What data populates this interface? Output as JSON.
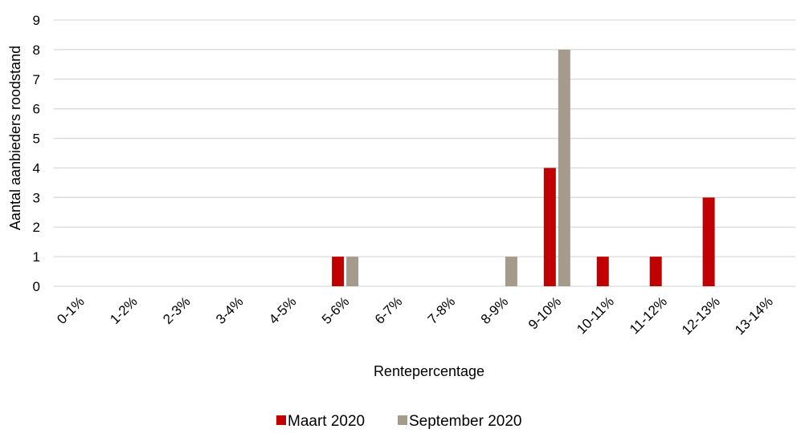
{
  "chart_data": {
    "type": "bar",
    "title": "",
    "xlabel": "Rentepercentage",
    "ylabel": "Aantal aanbieders roodstand",
    "categories": [
      "0-1%",
      "1-2%",
      "2-3%",
      "3-4%",
      "4-5%",
      "5-6%",
      "6-7%",
      "7-8%",
      "8-9%",
      "9-10%",
      "10-11%",
      "11-12%",
      "12-13%",
      "13-14%"
    ],
    "series": [
      {
        "name": "Maart 2020",
        "color": "#C00000",
        "values": [
          0,
          0,
          0,
          0,
          0,
          1,
          0,
          0,
          0,
          4,
          1,
          1,
          3,
          0
        ]
      },
      {
        "name": "September 2020",
        "color": "#A59B8B",
        "values": [
          0,
          0,
          0,
          0,
          0,
          1,
          0,
          0,
          1,
          8,
          0,
          0,
          0,
          0
        ]
      }
    ],
    "ylim": [
      0,
      9
    ],
    "yticks": [
      0,
      1,
      2,
      3,
      4,
      5,
      6,
      7,
      8,
      9
    ],
    "grid": true,
    "gridColor": "#D9D9D9",
    "legend": "bottom-center"
  }
}
